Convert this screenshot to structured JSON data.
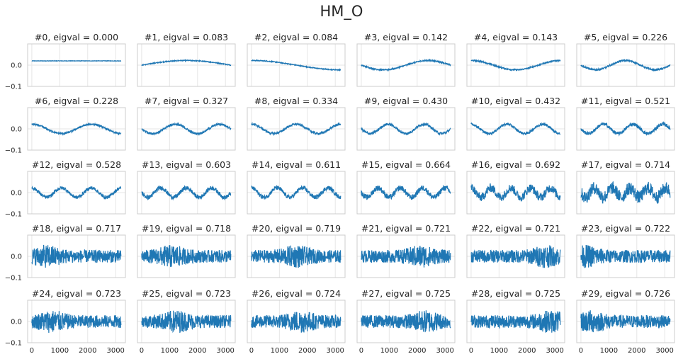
{
  "figure": {
    "title": "HM_O"
  },
  "style": {
    "line_color": "#1f77b4",
    "grid_color": "#e6e6e6",
    "spine_color": "#cccccc",
    "text_color": "#262626"
  },
  "chart_data": {
    "type": "line",
    "layout": "grid of 30 subplots, 5 rows x 6 columns",
    "grid": true,
    "x_ticks": [
      "0",
      "1000",
      "2000",
      "3000"
    ],
    "x_tick_values": [
      0,
      1000,
      2000,
      3000
    ],
    "y_ticks": [
      "0.0",
      "−0.1"
    ],
    "y_tick_values": [
      0.0,
      -0.1
    ],
    "xlim": [
      -150,
      3350
    ],
    "ylim": [
      -0.1,
      0.1
    ],
    "n_points": 3200,
    "shared_axes": "x tick labels on bottom row only; y tick labels on first column only",
    "subplots": [
      {
        "title": "#0, eigval = 0.000",
        "cycles": 0,
        "noise": 0.0
      },
      {
        "title": "#1, eigval = 0.083",
        "cycles": 0.5,
        "noise": 0.002
      },
      {
        "title": "#2, eigval = 0.084",
        "cycles": 0.5,
        "noise": 0.002
      },
      {
        "title": "#3, eigval = 0.142",
        "cycles": 1,
        "noise": 0.003
      },
      {
        "title": "#4, eigval = 0.143",
        "cycles": 1,
        "noise": 0.003
      },
      {
        "title": "#5, eigval = 0.226",
        "cycles": 1.5,
        "noise": 0.004
      },
      {
        "title": "#6, eigval = 0.228",
        "cycles": 1.5,
        "noise": 0.004
      },
      {
        "title": "#7, eigval = 0.327",
        "cycles": 2,
        "noise": 0.005
      },
      {
        "title": "#8, eigval = 0.334",
        "cycles": 2,
        "noise": 0.005
      },
      {
        "title": "#9, eigval = 0.430",
        "cycles": 2.5,
        "noise": 0.006
      },
      {
        "title": "#10, eigval = 0.432",
        "cycles": 2.5,
        "noise": 0.006
      },
      {
        "title": "#11, eigval = 0.521",
        "cycles": 3,
        "noise": 0.008
      },
      {
        "title": "#12, eigval = 0.528",
        "cycles": 3,
        "noise": 0.008
      },
      {
        "title": "#13, eigval = 0.603",
        "cycles": 3.5,
        "noise": 0.01
      },
      {
        "title": "#14, eigval = 0.611",
        "cycles": 3.5,
        "noise": 0.01
      },
      {
        "title": "#15, eigval = 0.664",
        "cycles": 4,
        "noise": 0.013
      },
      {
        "title": "#16, eigval = 0.692",
        "cycles": 4.5,
        "noise": 0.02
      },
      {
        "title": "#17, eigval = 0.714",
        "cycles": 5,
        "noise": 0.03
      },
      {
        "title": "#18, eigval = 0.717",
        "cycles": 0,
        "noise": 0.05
      },
      {
        "title": "#19, eigval = 0.718",
        "cycles": 0,
        "noise": 0.05
      },
      {
        "title": "#20, eigval = 0.719",
        "cycles": 0,
        "noise": 0.05
      },
      {
        "title": "#21, eigval = 0.721",
        "cycles": 0,
        "noise": 0.05
      },
      {
        "title": "#22, eigval = 0.721",
        "cycles": 0,
        "noise": 0.05
      },
      {
        "title": "#23, eigval = 0.722",
        "cycles": 0,
        "noise": 0.05
      },
      {
        "title": "#24, eigval = 0.723",
        "cycles": 0,
        "noise": 0.05
      },
      {
        "title": "#25, eigval = 0.723",
        "cycles": 0,
        "noise": 0.05
      },
      {
        "title": "#26, eigval = 0.724",
        "cycles": 0,
        "noise": 0.05
      },
      {
        "title": "#27, eigval = 0.725",
        "cycles": 0,
        "noise": 0.05
      },
      {
        "title": "#28, eigval = 0.725",
        "cycles": 0,
        "noise": 0.05
      },
      {
        "title": "#29, eigval = 0.726",
        "cycles": 0,
        "noise": 0.05
      }
    ]
  }
}
